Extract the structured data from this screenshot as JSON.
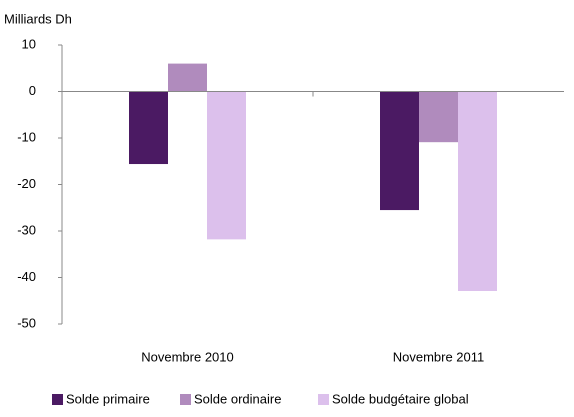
{
  "chart_data": {
    "type": "bar",
    "y_label": "Milliards Dh",
    "categories": [
      "Novembre 2010",
      "Novembre 2011"
    ],
    "series": [
      {
        "name": "Solde primaire",
        "color": "#4b1a63",
        "values": [
          -15.6,
          -25.5
        ]
      },
      {
        "name": "Solde ordinaire",
        "color": "#b08bbd",
        "values": [
          6,
          -10.9
        ]
      },
      {
        "name": "Solde budgétaire global",
        "color": "#dcc0ec",
        "values": [
          -31.8,
          -42.9
        ]
      }
    ],
    "ylim": [
      -50,
      10
    ],
    "yticks": [
      -50,
      -40,
      -30,
      -20,
      -10,
      0,
      10
    ],
    "grid": false
  }
}
